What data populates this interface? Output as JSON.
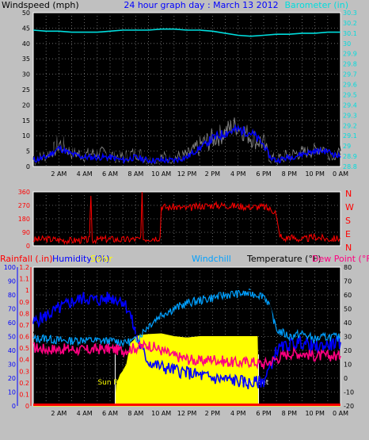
{
  "colors": {
    "background": "#c0c0c0",
    "plot": "#000000",
    "grid": "#808080",
    "wind": "#000000",
    "gust": "#808080",
    "avg_wind": "#0000ff",
    "barometer": "#00dddd",
    "direction": "#ff0000",
    "rain": "#ff0000",
    "humidity": "#0000ff",
    "solar": "#ffff00",
    "windchill": "#00a0ff",
    "temperature": "#000000",
    "dewpoint": "#ff0080"
  },
  "chart_data": [
    {
      "type": "line",
      "title": "24 hour graph day : March 13 2012",
      "ylabel": "Windspeed (mph)",
      "y2label": "Barometer (in)",
      "ylim": [
        0,
        50
      ],
      "y_ticks": [
        "0",
        "5",
        "10",
        "15",
        "20",
        "25",
        "30",
        "35",
        "40",
        "45",
        "50"
      ],
      "y2lim": [
        28.8,
        30.3
      ],
      "y2_ticks": [
        "28.8",
        "28.9",
        "29",
        "29.1",
        "29.2",
        "29.3",
        "29.4",
        "29.5",
        "29.6",
        "29.7",
        "29.8",
        "29.9",
        "30",
        "30.1",
        "30.2",
        "30.3"
      ],
      "x_ticks": [
        "2 AM",
        "4 AM",
        "6 AM",
        "8 AM",
        "10 AM",
        "12 PM",
        "2 PM",
        "4 PM",
        "6 PM",
        "8 PM",
        "10 PM",
        "0 AM"
      ],
      "xlim_hours": [
        0,
        24
      ],
      "series": [
        {
          "x": [
            0,
            1,
            1.5,
            2,
            3,
            4,
            5,
            6,
            7,
            8,
            8.5,
            9,
            10,
            11,
            12,
            13,
            14,
            15,
            15.5,
            16,
            16.5,
            17,
            18,
            18.5,
            19,
            20,
            21,
            22,
            22.5,
            23,
            24
          ],
          "values": [
            3,
            5,
            7,
            10,
            6,
            5,
            6,
            5,
            4,
            6,
            5,
            3,
            4,
            4,
            5,
            9,
            12,
            15,
            17,
            18,
            15,
            13,
            10,
            4,
            3,
            5,
            6,
            7,
            9,
            6,
            5
          ]
        },
        {
          "x": [
            0,
            1,
            2,
            3,
            4,
            5,
            6,
            7,
            8,
            9,
            10,
            11,
            12,
            13,
            14,
            15,
            16,
            17,
            18,
            18.5,
            19,
            20,
            21,
            22,
            23,
            24
          ],
          "values": [
            2,
            3,
            6,
            4,
            3,
            3,
            3,
            2,
            3,
            2,
            2,
            2,
            3,
            6,
            9,
            11,
            12,
            11,
            7,
            3,
            2,
            3,
            4,
            5,
            5,
            3
          ]
        },
        {
          "x": [
            0,
            1,
            2,
            3,
            4,
            5,
            6,
            7,
            8,
            9,
            10,
            11,
            12,
            13,
            14,
            15,
            16,
            17,
            18,
            19,
            20,
            21,
            22,
            23,
            24
          ],
          "values": [
            30.13,
            30.12,
            30.12,
            30.11,
            30.11,
            30.11,
            30.12,
            30.13,
            30.13,
            30.13,
            30.14,
            30.14,
            30.13,
            30.13,
            30.12,
            30.1,
            30.08,
            30.07,
            30.08,
            30.09,
            30.09,
            30.1,
            30.1,
            30.11,
            30.11
          ]
        }
      ]
    },
    {
      "type": "line",
      "ylim": [
        0,
        360
      ],
      "y_ticks": [
        "0",
        "90",
        "180",
        "270",
        "360"
      ],
      "y2_ticks": [
        "N",
        "W",
        "S",
        "E",
        "N"
      ],
      "series": [
        {
          "x": [
            0,
            1,
            2,
            3,
            4,
            4.4,
            4.5,
            4.6,
            5,
            6,
            7,
            8,
            8.4,
            8.5,
            8.6,
            9,
            9.9,
            10,
            10.5,
            11,
            12,
            13,
            14,
            15,
            16,
            17,
            18,
            18.9,
            19.2,
            19.5,
            20,
            21,
            22,
            23,
            24
          ],
          "values": [
            40,
            45,
            40,
            35,
            40,
            40,
            350,
            40,
            42,
            45,
            40,
            45,
            45,
            360,
            45,
            50,
            55,
            265,
            255,
            260,
            250,
            265,
            270,
            270,
            265,
            260,
            260,
            230,
            90,
            40,
            60,
            40,
            60,
            45,
            50
          ]
        }
      ]
    },
    {
      "type": "line",
      "y_label_left1": "Rainfall (.in)",
      "y_label_left2": "Humidity (%)",
      "label_solar": "Solar",
      "label_windchill": "Windchill",
      "label_temperature": "Temperature (°F)",
      "label_dewpoint": "Dew Point (°F)",
      "rain_ticks": [
        "0",
        "0.1",
        "0.2",
        "0.3",
        "0.4",
        "0.5",
        "0.6",
        "0.7",
        "0.8",
        "0.9",
        "1",
        "1.1",
        "1.2"
      ],
      "humidity_ticks": [
        "0",
        "10",
        "20",
        "30",
        "40",
        "50",
        "60",
        "70",
        "80",
        "90",
        "100"
      ],
      "temp_ticks": [
        "80",
        "70",
        "60",
        "50",
        "40",
        "30",
        "20",
        "10",
        "0",
        "-10",
        "-20"
      ],
      "temp_lim": [
        -20,
        80
      ],
      "sunrise_label": "Sun Rise",
      "sunset_label": "Sun Set",
      "series": [
        {
          "name": "Humidity",
          "x": [
            0,
            1,
            2,
            3,
            4,
            5,
            6,
            7,
            7.5,
            8,
            8.5,
            9,
            10,
            11,
            12,
            13,
            14,
            15,
            16,
            17,
            18,
            18.5,
            19,
            20,
            21,
            22,
            23,
            24
          ],
          "values": [
            60,
            65,
            70,
            75,
            78,
            76,
            78,
            76,
            68,
            52,
            40,
            32,
            28,
            26,
            24,
            22,
            20,
            19,
            18,
            16,
            18,
            28,
            40,
            44,
            46,
            42,
            44,
            46
          ]
        },
        {
          "name": "Temperature",
          "x": [
            0,
            1,
            2,
            3,
            4,
            5,
            6,
            7,
            8,
            9,
            10,
            11,
            12,
            13,
            14,
            15,
            16,
            17,
            18,
            18.5,
            19,
            20,
            21,
            22,
            23,
            24
          ],
          "values": [
            33,
            32,
            31,
            30,
            30,
            30,
            30,
            28,
            31,
            42,
            50,
            55,
            58,
            60,
            62,
            63,
            64,
            63,
            62,
            55,
            40,
            36,
            37,
            35,
            34,
            33
          ]
        },
        {
          "name": "Windchill",
          "x": [
            0,
            1,
            2,
            3,
            4,
            5,
            6,
            7,
            8,
            9,
            10,
            11,
            12,
            13,
            14,
            15,
            16,
            17,
            18,
            18.5,
            19,
            20,
            21,
            22,
            23,
            24
          ],
          "values": [
            28,
            29,
            27,
            27,
            28,
            27,
            27,
            26,
            27,
            38,
            46,
            50,
            54,
            56,
            58,
            60,
            61,
            61,
            60,
            52,
            35,
            30,
            32,
            28,
            30,
            29
          ]
        },
        {
          "name": "Dew Point",
          "x": [
            0,
            1,
            2,
            3,
            4,
            5,
            6,
            7,
            8,
            9,
            10,
            11,
            12,
            13,
            14,
            15,
            16,
            17,
            18,
            19,
            20,
            21,
            22,
            23,
            24
          ],
          "values": [
            22,
            21,
            21,
            21,
            20,
            21,
            21,
            20,
            22,
            24,
            20,
            16,
            14,
            12,
            14,
            12,
            11,
            12,
            10,
            14,
            18,
            18,
            16,
            16,
            16
          ]
        },
        {
          "name": "Solar",
          "x": [
            0,
            6.4,
            6.5,
            6.8,
            7,
            7.3,
            7.6,
            7.9,
            8,
            8.5,
            9,
            10,
            11,
            12,
            13,
            14,
            15,
            16,
            17,
            17.5,
            17.6,
            24
          ],
          "values": [
            0,
            0,
            30,
            45,
            50,
            60,
            90,
            95,
            100,
            102,
            103,
            104,
            100,
            98,
            100,
            100,
            100,
            100,
            100,
            100,
            0,
            0
          ]
        },
        {
          "name": "Rainfall",
          "x": [
            0,
            24
          ],
          "values": [
            0,
            0
          ]
        }
      ]
    }
  ]
}
